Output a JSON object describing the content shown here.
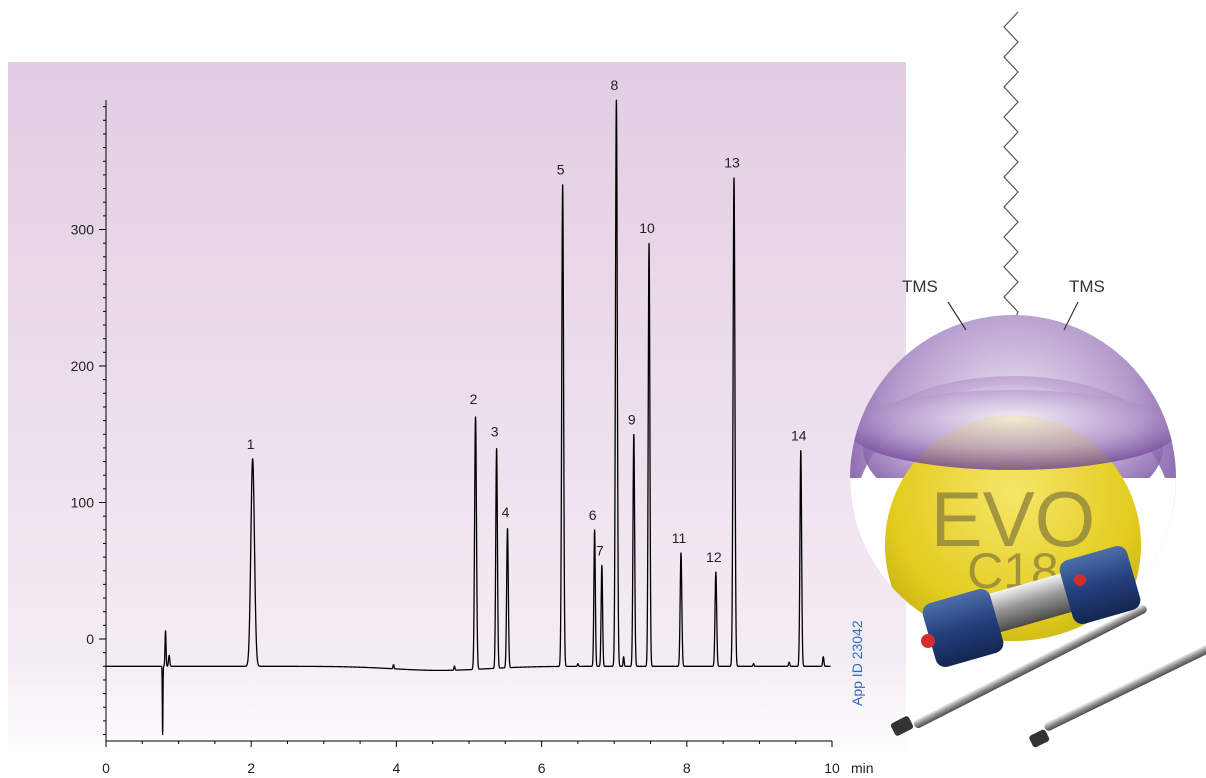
{
  "chart_data": {
    "type": "line",
    "title": "",
    "xlabel": "",
    "ylabel": "",
    "x_unit": "min",
    "xlim": [
      0,
      10
    ],
    "ylim": [
      -75,
      395
    ],
    "x_ticks": [
      0,
      2,
      4,
      6,
      8,
      10
    ],
    "y_ticks": [
      0,
      100,
      200,
      300
    ],
    "baseline": -20,
    "peaks": [
      {
        "label": "1",
        "x": 2.02,
        "height": 132,
        "width": 0.035
      },
      {
        "label": "2",
        "x": 5.09,
        "height": 165,
        "width": 0.018
      },
      {
        "label": "3",
        "x": 5.38,
        "height": 141,
        "width": 0.016
      },
      {
        "label": "4",
        "x": 5.53,
        "height": 82,
        "width": 0.016
      },
      {
        "label": "5",
        "x": 6.29,
        "height": 333,
        "width": 0.018
      },
      {
        "label": "6",
        "x": 6.73,
        "height": 80,
        "width": 0.014
      },
      {
        "label": "7",
        "x": 6.83,
        "height": 54,
        "width": 0.014
      },
      {
        "label": "8",
        "x": 7.03,
        "height": 395,
        "width": 0.018
      },
      {
        "label": "9",
        "x": 7.27,
        "height": 150,
        "width": 0.016
      },
      {
        "label": "10",
        "x": 7.48,
        "height": 290,
        "width": 0.016
      },
      {
        "label": "11",
        "x": 7.92,
        "height": 63,
        "width": 0.016
      },
      {
        "label": "12",
        "x": 8.4,
        "height": 49,
        "width": 0.016
      },
      {
        "label": "13",
        "x": 8.65,
        "height": 338,
        "width": 0.018
      },
      {
        "label": "14",
        "x": 9.57,
        "height": 138,
        "width": 0.016
      }
    ]
  },
  "app_id": "App ID 23042",
  "graphic": {
    "tms_left": "TMS",
    "tms_right": "TMS",
    "phase_line1": "EVO",
    "phase_line2": "C18"
  },
  "colors": {
    "plot_background_top": "#e2cde2",
    "plot_background_bottom": "#ffffff",
    "trace": "#000000",
    "app_id": "#2a6ebb",
    "sphere_purple": "#6b3f9a",
    "sphere_yellow": "#e6d22a"
  }
}
